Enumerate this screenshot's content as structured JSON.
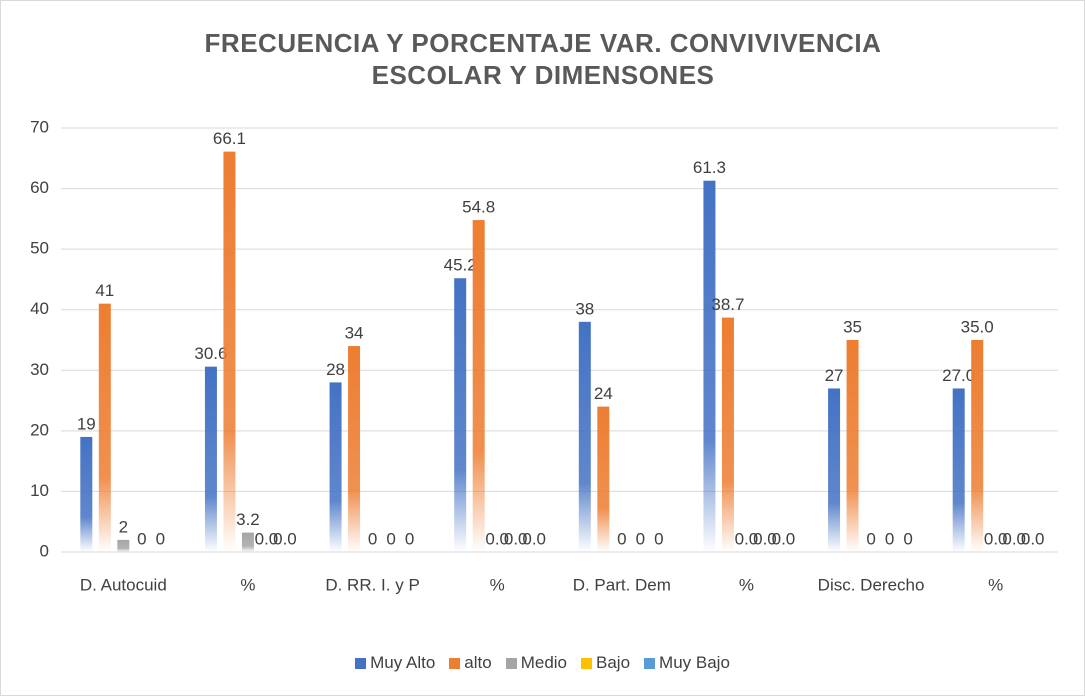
{
  "chart_data": {
    "type": "bar",
    "title": "FRECUENCIA Y PORCENTAJE VAR. CONVIVIVENCIA ESCOLAR Y DIMENSONES",
    "categories": [
      "D. Autocuid",
      "%",
      "D. RR. I. y P",
      "%",
      "D. Part. Dem",
      "%",
      "Disc. Derecho",
      "%"
    ],
    "series": [
      {
        "name": "Muy Alto",
        "color": "#4472c4",
        "values": [
          19,
          30.6,
          28,
          45.2,
          38,
          61.3,
          27,
          27.0
        ],
        "value_labels": [
          "19",
          "30.6",
          "28",
          "45.2",
          "38",
          "61.3",
          "27",
          "27.0"
        ]
      },
      {
        "name": "alto",
        "color": "#ed7d31",
        "values": [
          41,
          66.1,
          34,
          54.8,
          24,
          38.7,
          35,
          35.0
        ],
        "value_labels": [
          "41",
          "66.1",
          "34",
          "54.8",
          "24",
          "38.7",
          "35",
          "35.0"
        ]
      },
      {
        "name": "Medio",
        "color": "#a5a5a5",
        "values": [
          2,
          3.2,
          0,
          0.0,
          0,
          0.0,
          0,
          0.0
        ],
        "value_labels": [
          "2",
          "3.2",
          "0",
          "0.0",
          "0",
          "0.0",
          "0",
          "0.0"
        ]
      },
      {
        "name": "Bajo",
        "color": "#ffc000",
        "values": [
          0,
          0.0,
          0,
          0.0,
          0,
          0.0,
          0,
          0.0
        ],
        "value_labels": [
          "0",
          "0.0",
          "0",
          "0.0",
          "0",
          "0.0",
          "0",
          "0.0"
        ]
      },
      {
        "name": "Muy Bajo",
        "color": "#5b9bd5",
        "values": [
          0,
          0.0,
          0,
          0.0,
          0,
          0.0,
          0,
          0.0
        ],
        "value_labels": [
          "0",
          "0.0",
          "0",
          "0.0",
          "0",
          "0.0",
          "0",
          "0.0"
        ]
      }
    ],
    "ylim": [
      0,
      70
    ],
    "yticks": [
      0,
      10,
      20,
      30,
      40,
      50,
      60,
      70
    ],
    "grid": true,
    "legend": "bottom"
  }
}
